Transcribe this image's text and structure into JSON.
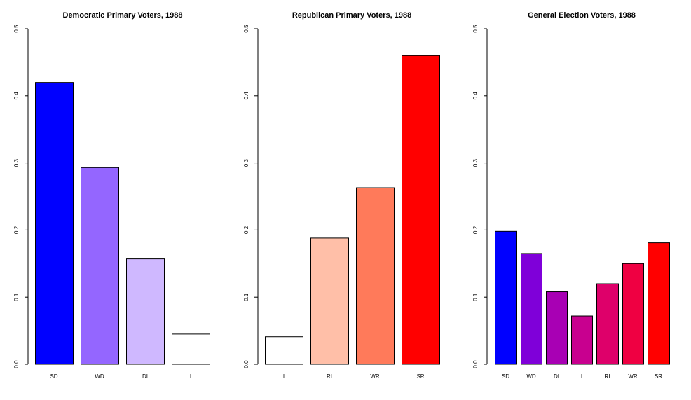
{
  "chart_data": [
    {
      "type": "bar",
      "title": "Democratic Primary Voters, 1988",
      "categories": [
        "SD",
        "WD",
        "DI",
        "I"
      ],
      "values": [
        0.42,
        0.293,
        0.157,
        0.045
      ],
      "colors": [
        "#0000FF",
        "#9466FF",
        "#CFB8FF",
        "#FFFFFF"
      ],
      "ylim": [
        0,
        0.5
      ],
      "yticks": [
        "0.0",
        "0.1",
        "0.2",
        "0.3",
        "0.4",
        "0.5"
      ],
      "xlabel": "",
      "ylabel": "",
      "grid": false
    },
    {
      "type": "bar",
      "title": "Republican Primary Voters, 1988",
      "categories": [
        "I",
        "RI",
        "WR",
        "SR"
      ],
      "values": [
        0.041,
        0.188,
        0.263,
        0.46
      ],
      "colors": [
        "#FFFFFF",
        "#FFBFA8",
        "#FF7A5A",
        "#FF0000"
      ],
      "ylim": [
        0,
        0.5
      ],
      "yticks": [
        "0.0",
        "0.1",
        "0.2",
        "0.3",
        "0.4",
        "0.5"
      ],
      "xlabel": "",
      "ylabel": "",
      "grid": false
    },
    {
      "type": "bar",
      "title": "General Election Voters, 1988",
      "categories": [
        "SD",
        "WD",
        "DI",
        "I",
        "RI",
        "WR",
        "SR"
      ],
      "values": [
        0.198,
        0.165,
        0.108,
        0.072,
        0.12,
        0.15,
        0.181
      ],
      "colors": [
        "#0000FF",
        "#7F00D9",
        "#A800B4",
        "#C8008F",
        "#DE006A",
        "#EF0042",
        "#FF0000"
      ],
      "ylim": [
        0,
        0.5
      ],
      "yticks": [
        "0.0",
        "0.1",
        "0.2",
        "0.3",
        "0.4",
        "0.5"
      ],
      "xlabel": "",
      "ylabel": "",
      "grid": false
    }
  ]
}
